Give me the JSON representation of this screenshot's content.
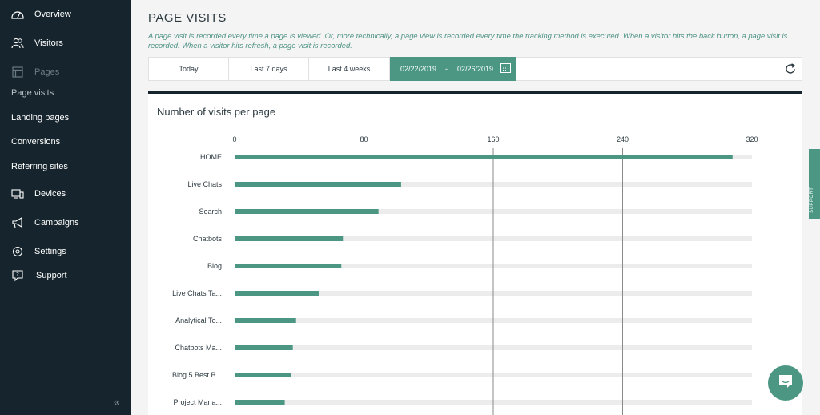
{
  "sidebar": {
    "items": [
      {
        "label": "Overview",
        "icon": "dashboard-icon"
      },
      {
        "label": "Visitors",
        "icon": "users-icon"
      },
      {
        "label": "Pages",
        "icon": "pages-icon"
      },
      {
        "label": "Page visits"
      },
      {
        "label": "Landing pages"
      },
      {
        "label": "Conversions"
      },
      {
        "label": "Referring sites"
      },
      {
        "label": "Devices",
        "icon": "devices-icon"
      },
      {
        "label": "Campaigns",
        "icon": "megaphone-icon"
      },
      {
        "label": "Settings",
        "icon": "gear-icon"
      },
      {
        "label": "Support",
        "icon": "help-icon"
      }
    ],
    "collapse_label": "«"
  },
  "header": {
    "title": "PAGE VISITS",
    "description": "A page visit is recorded every time a page is viewed. Or, more technically, a page view is recorded every time the tracking method is executed. When a visitor hits the back button, a page visit is recorded. When a visitor hits refresh, a page visit is recorded."
  },
  "toolbar": {
    "today": "Today",
    "last7": "Last 7 days",
    "last4w": "Last 4 weeks",
    "date_from": "02/22/2019",
    "date_sep": "-",
    "date_to": "02/26/2019"
  },
  "card": {
    "title": "Number of visits per page"
  },
  "support_tab": "SUPPORT",
  "colors": {
    "accent": "#4b9783",
    "sidebar": "#16252d"
  },
  "chart_data": {
    "type": "bar",
    "orientation": "horizontal",
    "categories": [
      "HOME",
      "Live Chats",
      "Search",
      "Chatbots",
      "Blog",
      "Live Chats Ta...",
      "Analytical To...",
      "Chatbots Ma...",
      "Blog 5 Best B...",
      "Project Mana..."
    ],
    "values": [
      308,
      103,
      89,
      67,
      66,
      52,
      38,
      36,
      35,
      31
    ],
    "xlim": [
      0,
      320
    ],
    "ticks": [
      0,
      80,
      160,
      240,
      320
    ],
    "grid": true
  }
}
